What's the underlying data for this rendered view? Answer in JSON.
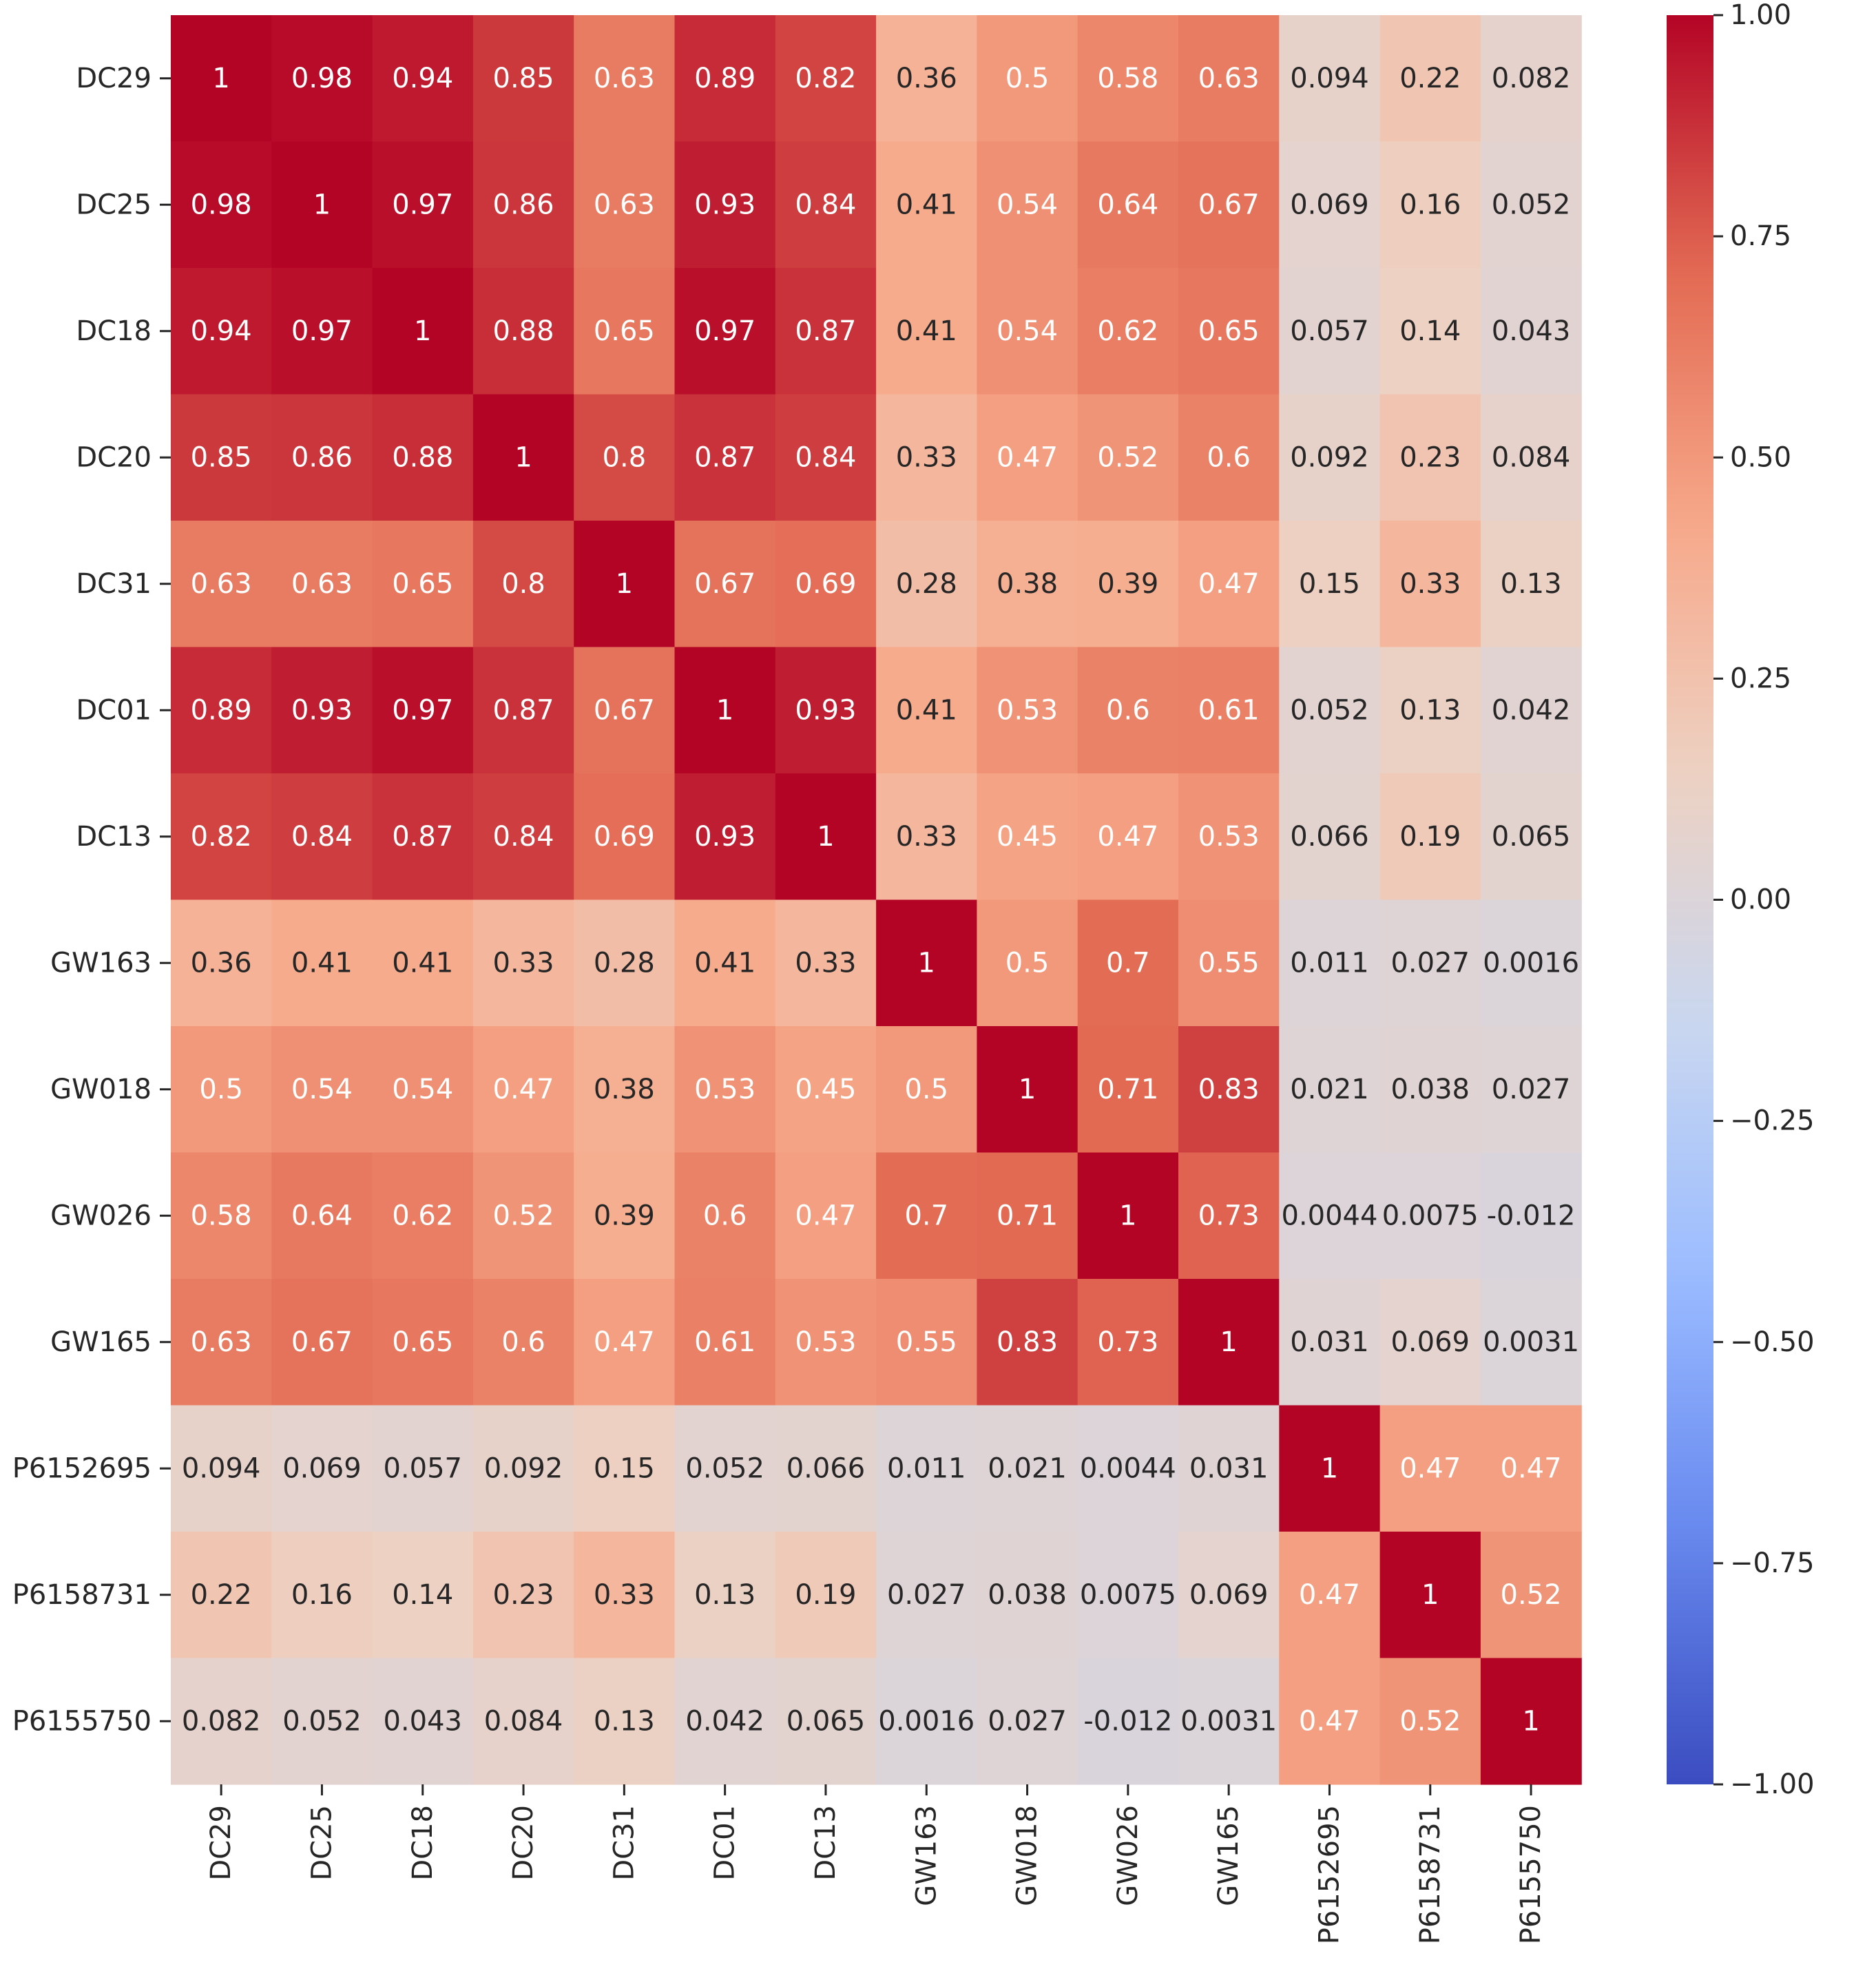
{
  "chart_data": {
    "type": "heatmap",
    "title": "",
    "xlabel": "",
    "ylabel": "",
    "colormap": "coolwarm",
    "vmin": -1.0,
    "vmax": 1.0,
    "labels": [
      "DC29",
      "DC25",
      "DC18",
      "DC20",
      "DC31",
      "DC01",
      "DC13",
      "GW163",
      "GW018",
      "GW026",
      "GW165",
      "P6152695",
      "P6158731",
      "P6155750"
    ],
    "values": [
      [
        1,
        0.98,
        0.94,
        0.85,
        0.63,
        0.89,
        0.82,
        0.36,
        0.5,
        0.58,
        0.63,
        0.094,
        0.22,
        0.082
      ],
      [
        0.98,
        1,
        0.97,
        0.86,
        0.63,
        0.93,
        0.84,
        0.41,
        0.54,
        0.64,
        0.67,
        0.069,
        0.16,
        0.052
      ],
      [
        0.94,
        0.97,
        1,
        0.88,
        0.65,
        0.97,
        0.87,
        0.41,
        0.54,
        0.62,
        0.65,
        0.057,
        0.14,
        0.043
      ],
      [
        0.85,
        0.86,
        0.88,
        1,
        0.8,
        0.87,
        0.84,
        0.33,
        0.47,
        0.52,
        0.6,
        0.092,
        0.23,
        0.084
      ],
      [
        0.63,
        0.63,
        0.65,
        0.8,
        1,
        0.67,
        0.69,
        0.28,
        0.38,
        0.39,
        0.47,
        0.15,
        0.33,
        0.13
      ],
      [
        0.89,
        0.93,
        0.97,
        0.87,
        0.67,
        1,
        0.93,
        0.41,
        0.53,
        0.6,
        0.61,
        0.052,
        0.13,
        0.042
      ],
      [
        0.82,
        0.84,
        0.87,
        0.84,
        0.69,
        0.93,
        1,
        0.33,
        0.45,
        0.47,
        0.53,
        0.066,
        0.19,
        0.065
      ],
      [
        0.36,
        0.41,
        0.41,
        0.33,
        0.28,
        0.41,
        0.33,
        1,
        0.5,
        0.7,
        0.55,
        0.011,
        0.027,
        0.0016
      ],
      [
        0.5,
        0.54,
        0.54,
        0.47,
        0.38,
        0.53,
        0.45,
        0.5,
        1,
        0.71,
        0.83,
        0.021,
        0.038,
        0.027
      ],
      [
        0.58,
        0.64,
        0.62,
        0.52,
        0.39,
        0.6,
        0.47,
        0.7,
        0.71,
        1,
        0.73,
        0.0044,
        0.0075,
        -0.012
      ],
      [
        0.63,
        0.67,
        0.65,
        0.6,
        0.47,
        0.61,
        0.53,
        0.55,
        0.83,
        0.73,
        1,
        0.031,
        0.069,
        0.0031
      ],
      [
        0.094,
        0.069,
        0.057,
        0.092,
        0.15,
        0.052,
        0.066,
        0.011,
        0.021,
        0.0044,
        0.031,
        1,
        0.47,
        0.47
      ],
      [
        0.22,
        0.16,
        0.14,
        0.23,
        0.33,
        0.13,
        0.19,
        0.027,
        0.038,
        0.0075,
        0.069,
        0.47,
        1,
        0.52
      ],
      [
        0.082,
        0.052,
        0.043,
        0.084,
        0.13,
        0.042,
        0.065,
        0.0016,
        0.027,
        -0.012,
        0.0031,
        0.47,
        0.52,
        1
      ]
    ],
    "colorbar": {
      "ticks": [
        1.0,
        0.75,
        0.5,
        0.25,
        0.0,
        -0.25,
        -0.5,
        -0.75,
        -1.0
      ],
      "tick_labels": [
        "1.00",
        "0.75",
        "0.50",
        "0.25",
        "0.00",
        "−0.25",
        "−0.50",
        "−0.75",
        "−1.00"
      ]
    },
    "grid": false
  },
  "colors": {
    "background": "#ffffff",
    "text": "#262626",
    "annotation_light": "#ffffff",
    "annotation_dark": "#262626",
    "coolwarm_stops": [
      "#3b4cc0",
      "#6788ee",
      "#9abbff",
      "#c9d7f0",
      "#edd1c2",
      "#f7a889",
      "#e26952",
      "#b40426"
    ]
  }
}
